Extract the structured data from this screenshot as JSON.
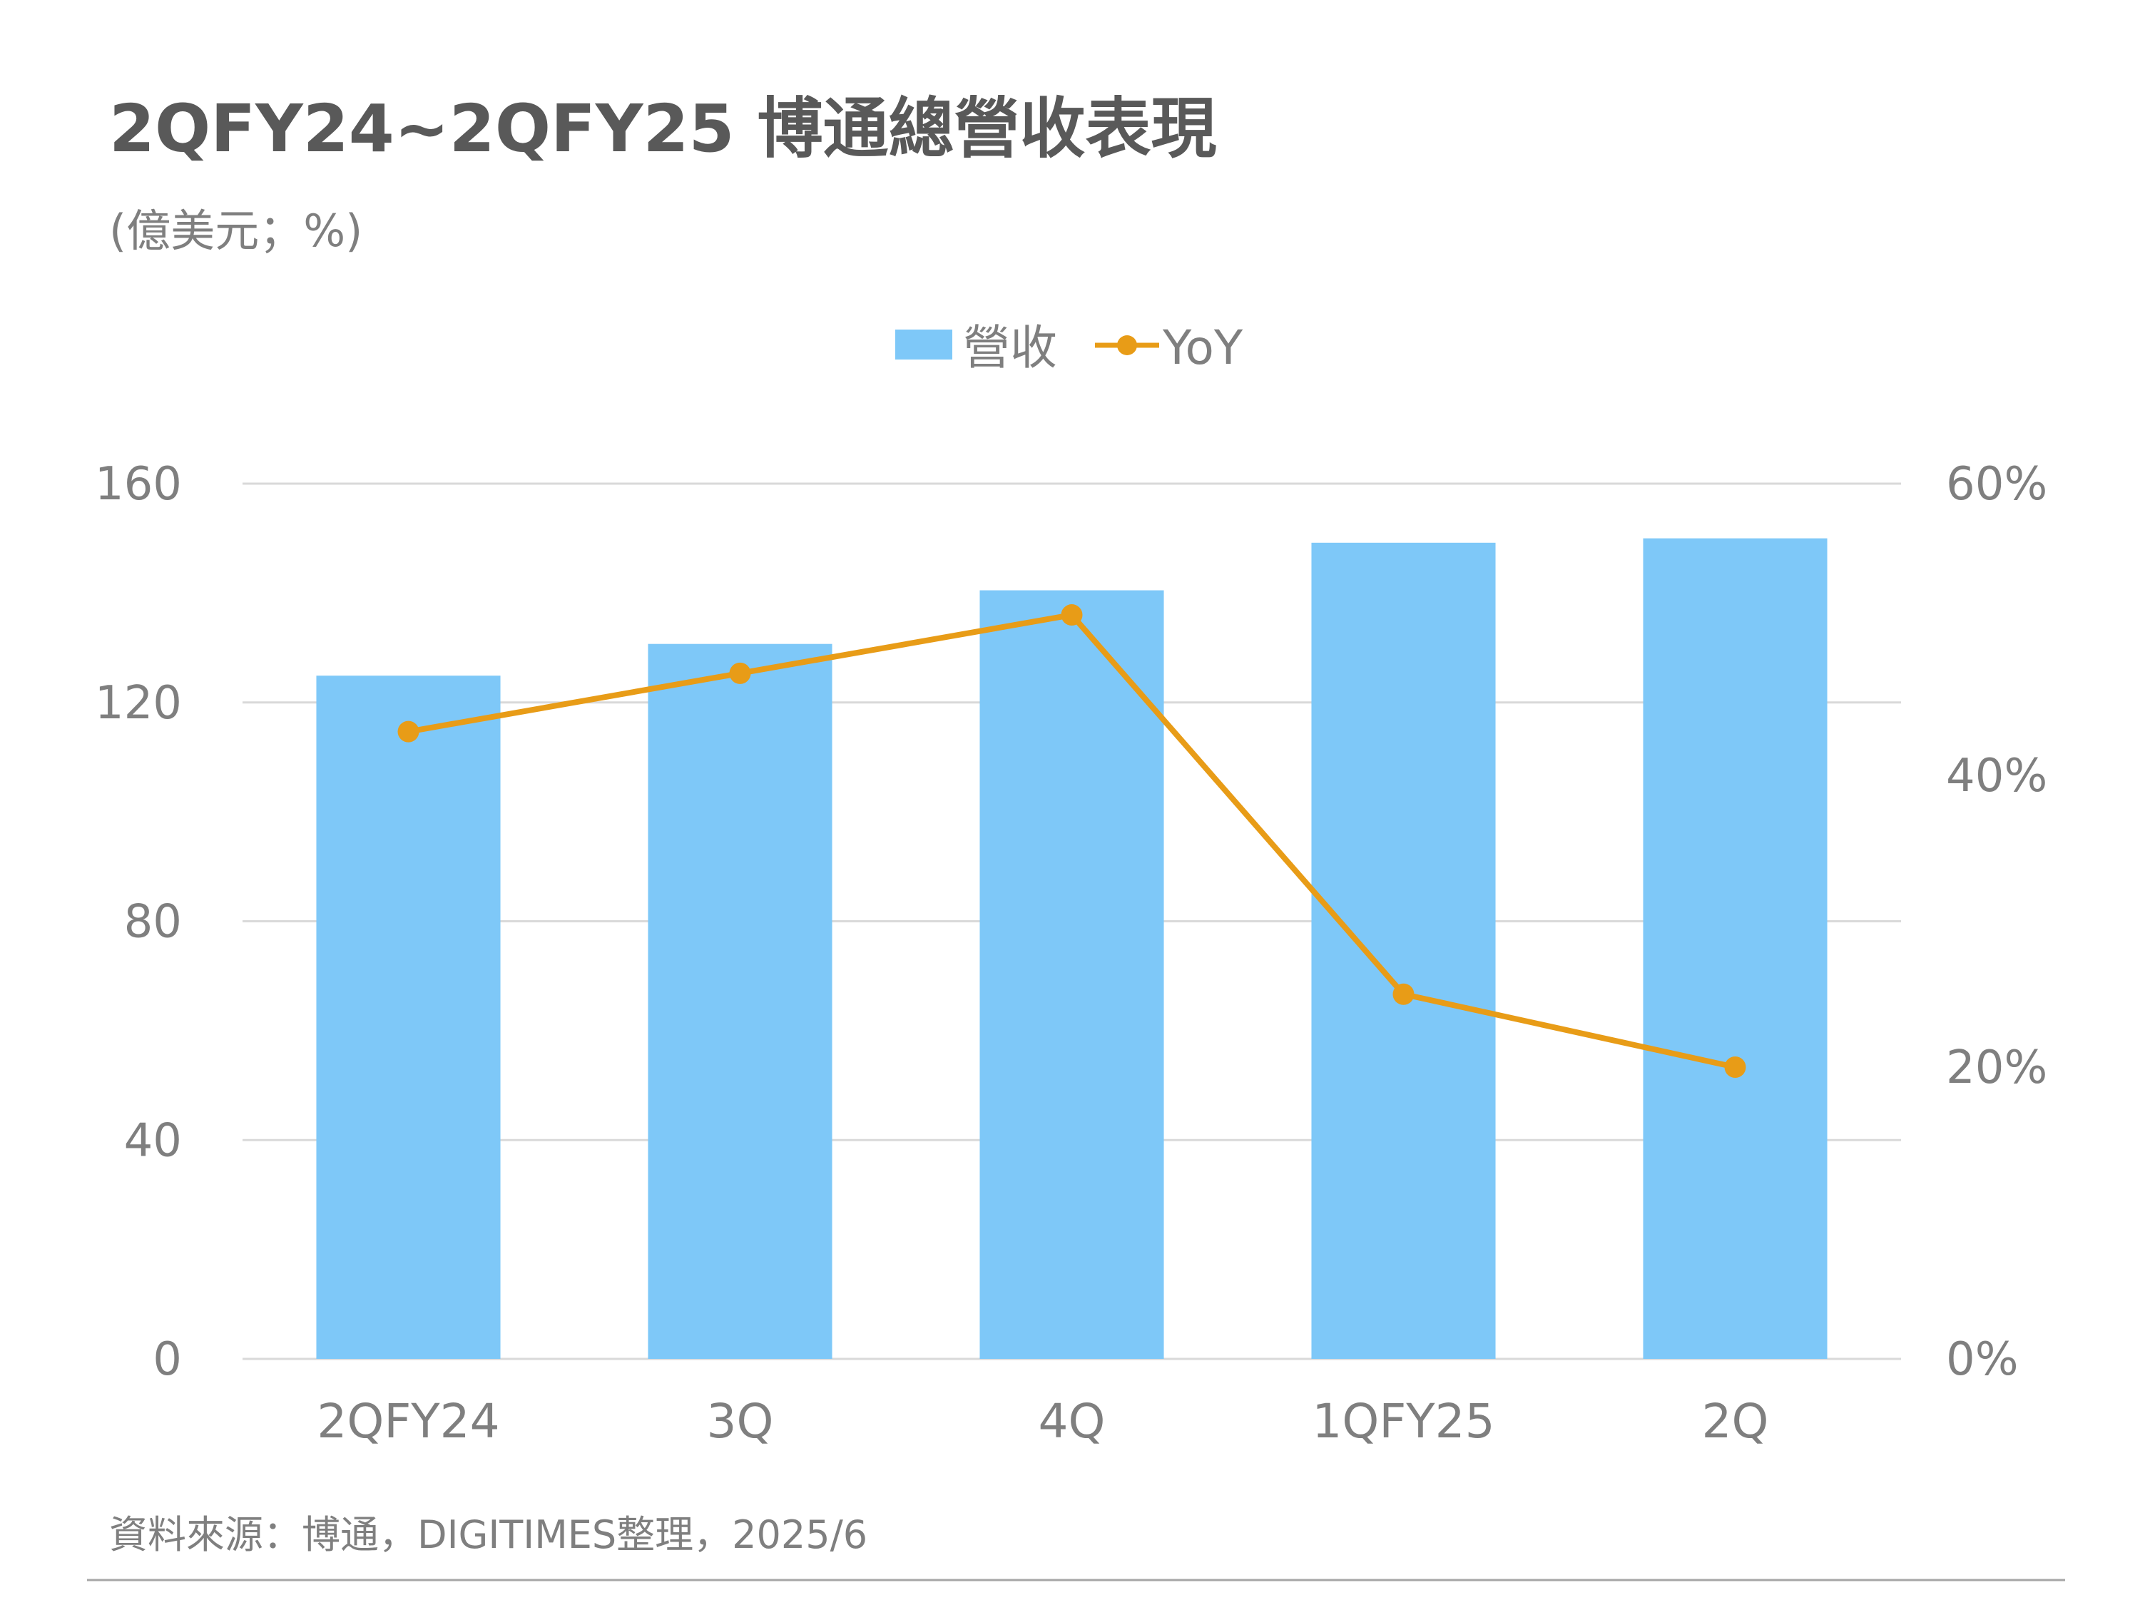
{
  "title": "2QFY24~2QFY25 博通總營收表現",
  "subtitle": "(億美元；%)",
  "source": "資料來源：博通，DIGITIMES整理，2025/6",
  "colors": {
    "bar": "#7EC8F8",
    "line": "#E89C17",
    "grid": "#D9D9D9",
    "text": "#7F7F7F",
    "title": "#595959"
  },
  "chart_data": {
    "type": "bar",
    "categories": [
      "2QFY24",
      "3Q",
      "4Q",
      "1QFY25",
      "2Q"
    ],
    "series": [
      {
        "name": "營收",
        "type": "bar",
        "axis": "left",
        "values": [
          124.9,
          130.7,
          140.5,
          149.2,
          150.0
        ]
      },
      {
        "name": "YoY",
        "type": "line",
        "axis": "right",
        "values": [
          43.0,
          47.0,
          51.0,
          25.0,
          20.0
        ]
      }
    ],
    "y_left": {
      "ylim": [
        0,
        160
      ],
      "ticks": [
        "0",
        "40",
        "80",
        "120",
        "160"
      ]
    },
    "y_right": {
      "ylim": [
        0,
        60
      ],
      "ticks": [
        "0%",
        "20%",
        "40%",
        "60%"
      ]
    },
    "legend": "top-center",
    "grid": true
  }
}
